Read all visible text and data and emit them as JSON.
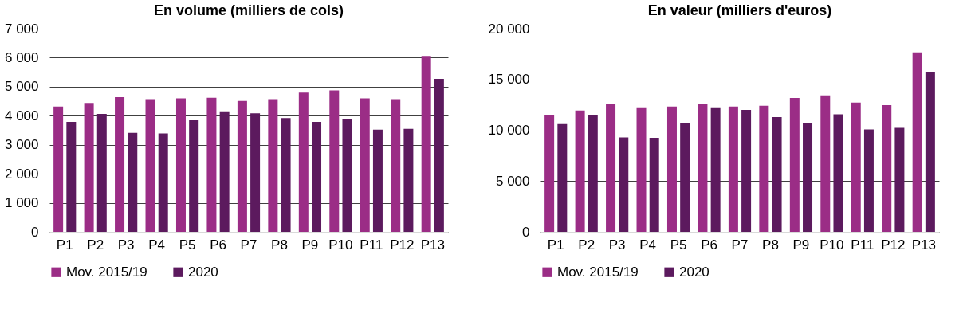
{
  "chart_data": [
    {
      "type": "bar",
      "title": "En volume (milliers de cols)",
      "categories": [
        "P1",
        "P2",
        "P3",
        "P4",
        "P5",
        "P6",
        "P7",
        "P8",
        "P9",
        "P10",
        "P11",
        "P12",
        "P13"
      ],
      "series": [
        {
          "name": "Mov. 2015/19",
          "color": "#9b2d86",
          "values": [
            4320,
            4440,
            4640,
            4570,
            4600,
            4620,
            4510,
            4570,
            4800,
            4870,
            4600,
            4570,
            6060
          ]
        },
        {
          "name": "2020",
          "color": "#5c1a5e",
          "values": [
            3790,
            4060,
            3410,
            3390,
            3840,
            4150,
            4080,
            3920,
            3790,
            3900,
            3520,
            3550,
            5270
          ]
        }
      ],
      "ylim": [
        0,
        7000
      ],
      "yticks": [
        0,
        {
          "value": 1000,
          "label": "1 000"
        },
        {
          "value": 2000,
          "label": "2 000"
        },
        {
          "value": 3000,
          "label": "3 000"
        },
        {
          "value": 4000,
          "label": "4 000"
        },
        {
          "value": 5000,
          "label": "5 000"
        },
        {
          "value": 6000,
          "label": "6 000"
        },
        {
          "value": 7000,
          "label": "7 000"
        }
      ],
      "grid": "y",
      "legend": "bottom"
    },
    {
      "type": "bar",
      "title": "En valeur (milliers d'euros)",
      "categories": [
        "P1",
        "P2",
        "P3",
        "P4",
        "P5",
        "P6",
        "P7",
        "P8",
        "P9",
        "P10",
        "P11",
        "P12",
        "P13"
      ],
      "series": [
        {
          "name": "Mov. 2015/19",
          "color": "#9b2d86",
          "values": [
            11480,
            11950,
            12570,
            12260,
            12340,
            12570,
            12340,
            12420,
            13170,
            13430,
            12730,
            12470,
            17660
          ]
        },
        {
          "name": "2020",
          "color": "#5c1a5e",
          "values": [
            10600,
            11480,
            9300,
            9250,
            10730,
            12260,
            12000,
            11300,
            10730,
            11560,
            10080,
            10230,
            15740
          ]
        }
      ],
      "ylim": [
        0,
        20000
      ],
      "yticks": [
        0,
        {
          "value": 5000,
          "label": "5 000"
        },
        {
          "value": 10000,
          "label": "10 000"
        },
        {
          "value": 15000,
          "label": "15 000"
        },
        {
          "value": 20000,
          "label": "20 000"
        }
      ],
      "grid": "y",
      "legend": "bottom"
    }
  ]
}
